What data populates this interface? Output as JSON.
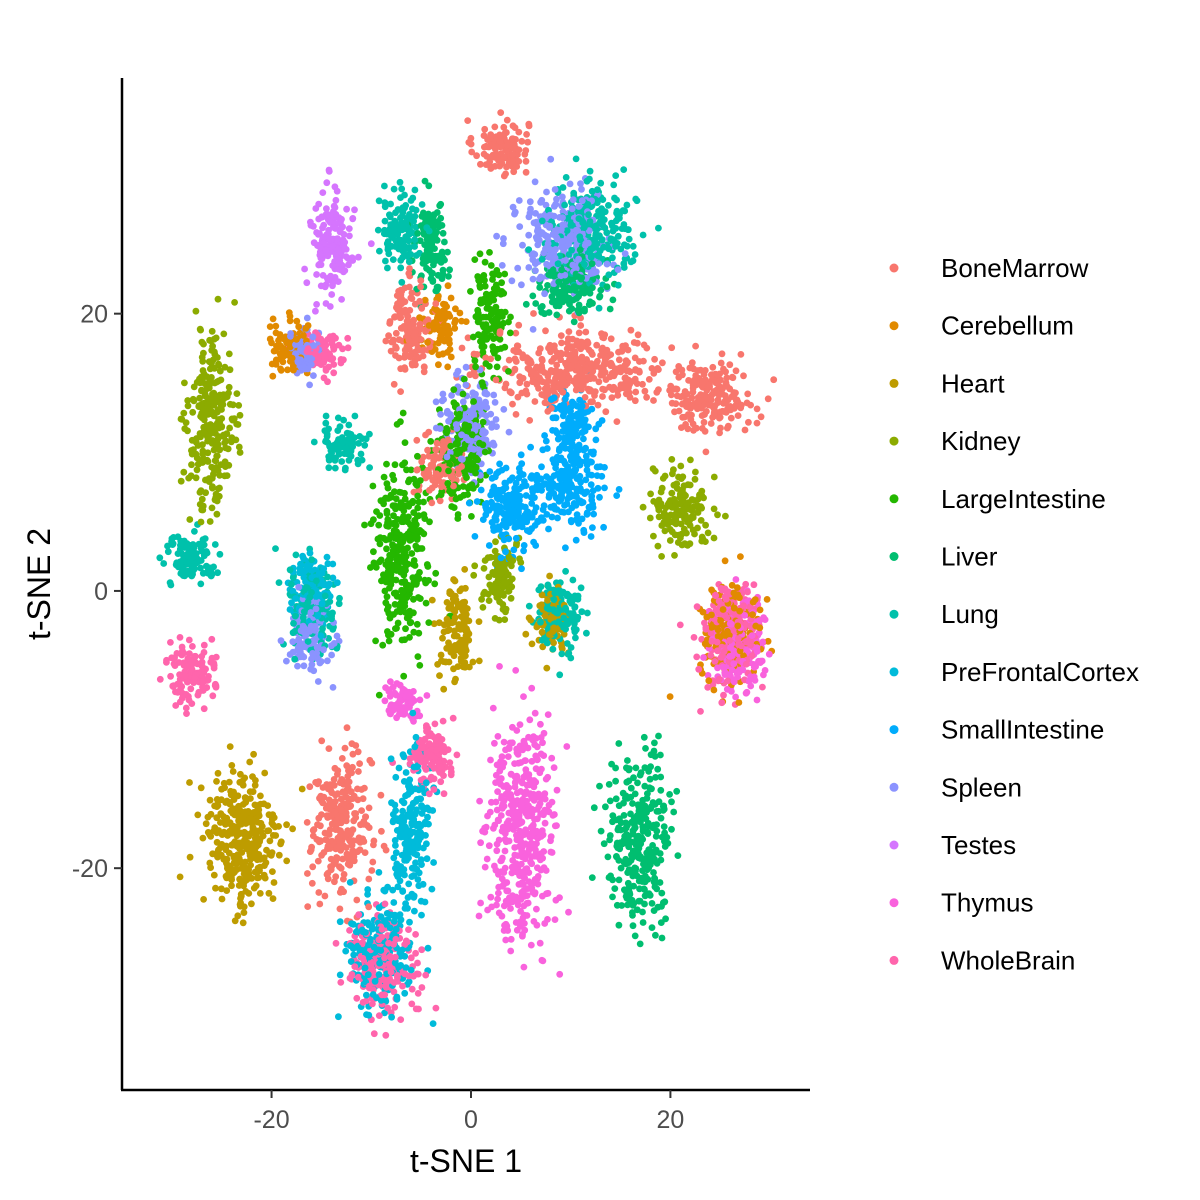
{
  "chart_data": {
    "type": "scatter",
    "title": "",
    "xlabel": "t-SNE 1",
    "ylabel": "t-SNE 2",
    "xlim": [
      -35,
      34
    ],
    "ylim": [
      -36,
      37
    ],
    "x_ticks": [
      -20,
      0,
      20
    ],
    "y_ticks": [
      -20,
      0,
      20
    ],
    "grid": false,
    "legend_position": "right",
    "series": [
      {
        "name": "BoneMarrow",
        "color": "#F8766D",
        "clusters": [
          [
            3,
            32,
            2.5,
            1.8
          ],
          [
            11,
            16,
            8,
            2.6
          ],
          [
            24,
            14,
            4,
            2.2
          ],
          [
            -6,
            19,
            2,
            3
          ],
          [
            -13,
            -17,
            2.8,
            4.6
          ],
          [
            -3,
            9,
            2,
            2
          ]
        ]
      },
      {
        "name": "Cerebellum",
        "color": "#E18A00",
        "clusters": [
          [
            -18,
            17.5,
            2,
            1.8
          ],
          [
            26,
            -3,
            2.8,
            3
          ],
          [
            -3,
            19,
            1.5,
            2
          ]
        ]
      },
      {
        "name": "Heart",
        "color": "#BE9C00",
        "clusters": [
          [
            -23,
            -18,
            3.5,
            4.8
          ],
          [
            -1.5,
            -3,
            1.6,
            3.2
          ],
          [
            8,
            -2,
            1.5,
            2
          ]
        ]
      },
      {
        "name": "Kidney",
        "color": "#8CAB00",
        "clusters": [
          [
            -26,
            12,
            2.2,
            5.8
          ],
          [
            21,
            6,
            2.6,
            2.6
          ],
          [
            3,
            1,
            1.5,
            2.5
          ]
        ]
      },
      {
        "name": "LargeIntestine",
        "color": "#24B700",
        "clusters": [
          [
            -7,
            3,
            2.4,
            6.5
          ],
          [
            -1,
            10,
            2,
            4
          ],
          [
            2,
            20,
            1.5,
            3.5
          ]
        ]
      },
      {
        "name": "Liver",
        "color": "#00BE70",
        "clusters": [
          [
            17,
            -18,
            3,
            5.2
          ],
          [
            -4,
            25,
            1.5,
            3
          ],
          [
            10,
            22,
            3,
            2
          ]
        ]
      },
      {
        "name": "Lung",
        "color": "#00C1AB",
        "clusters": [
          [
            -28,
            2.5,
            2.5,
            1.4
          ],
          [
            -13,
            10.5,
            2.2,
            1.4
          ],
          [
            -7,
            26,
            2,
            2.5
          ],
          [
            12,
            26,
            4,
            3
          ],
          [
            -16,
            -1,
            2.2,
            3
          ],
          [
            9,
            -2,
            2,
            2.5
          ]
        ]
      },
      {
        "name": "PreFrontalCortex",
        "color": "#00BBDA",
        "clusters": [
          [
            -9,
            -26,
            3,
            3.6
          ],
          [
            -6,
            -17,
            1.8,
            5
          ],
          [
            -16,
            0,
            2,
            2.5
          ]
        ]
      },
      {
        "name": "SmallIntestine",
        "color": "#00ACFC",
        "clusters": [
          [
            10,
            8,
            3,
            3
          ],
          [
            4,
            6,
            3,
            3
          ],
          [
            10,
            12,
            2,
            2
          ]
        ]
      },
      {
        "name": "Spleen",
        "color": "#8B93FF",
        "clusters": [
          [
            9,
            25,
            4,
            3.5
          ],
          [
            -16,
            -3,
            2.2,
            2.6
          ],
          [
            0,
            12,
            2.5,
            3
          ],
          [
            -17,
            17,
            1.5,
            1.5
          ]
        ]
      },
      {
        "name": "Testes",
        "color": "#D575FE",
        "clusters": [
          [
            -14,
            25,
            2,
            3.2
          ]
        ]
      },
      {
        "name": "Thymus",
        "color": "#F962DD",
        "clusters": [
          [
            5,
            -17,
            3.2,
            7
          ],
          [
            -7,
            -8,
            1.5,
            1.2
          ],
          [
            27,
            -4,
            2.5,
            3
          ]
        ]
      },
      {
        "name": "WholeBrain",
        "color": "#FF65AC",
        "clusters": [
          [
            -28,
            -6,
            2.3,
            2
          ],
          [
            -9,
            -27,
            3,
            3.2
          ],
          [
            26,
            -3,
            3,
            3.2
          ],
          [
            -15,
            17,
            2,
            1.5
          ],
          [
            -4,
            -12,
            2,
            2
          ]
        ]
      }
    ]
  }
}
